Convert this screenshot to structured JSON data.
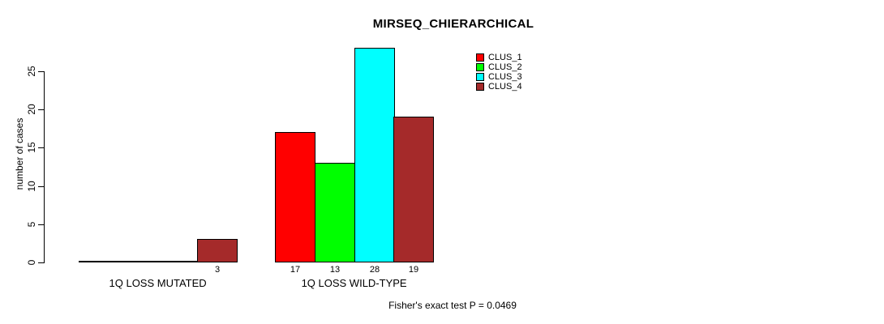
{
  "chart_data": {
    "type": "bar",
    "title": "MIRSEQ_CHIERARCHICAL",
    "ylabel": "number of cases",
    "xlabel": "",
    "categories": [
      "1Q LOSS MUTATED",
      "1Q LOSS WILD-TYPE"
    ],
    "series": [
      {
        "name": "CLUS_1",
        "color": "#ff0000",
        "values": [
          0,
          17
        ]
      },
      {
        "name": "CLUS_2",
        "color": "#00ff00",
        "values": [
          0,
          13
        ]
      },
      {
        "name": "CLUS_3",
        "color": "#00ffff",
        "values": [
          0,
          28
        ]
      },
      {
        "name": "CLUS_4",
        "color": "#a52a2a",
        "values": [
          3,
          19
        ]
      }
    ],
    "y_ticks": [
      0,
      5,
      10,
      15,
      20,
      25
    ],
    "ylim": [
      0,
      28
    ],
    "grid": false,
    "legend_position": "top-right",
    "bar_value_labels_shown": true,
    "zero_bars_drawn_as_line": true,
    "annotation": "Fisher's exact test P = 0.0469"
  },
  "colors": {
    "background": "#ffffff",
    "axis": "#000000",
    "bar_border": "#000000",
    "text": "#000000"
  }
}
